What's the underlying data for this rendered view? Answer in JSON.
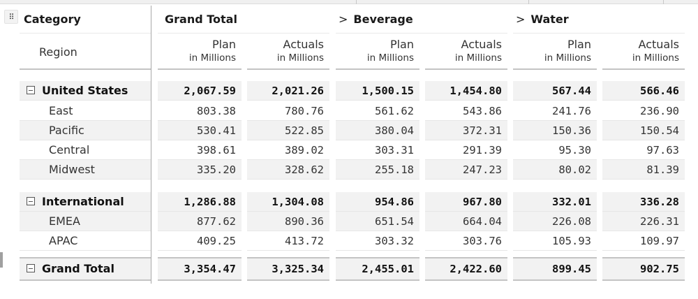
{
  "header": {
    "row_dimension": "Category",
    "sub_dimension": "Region",
    "column_groups": [
      {
        "label": "Grand Total",
        "expandable": false
      },
      {
        "label": "Beverage",
        "expandable": true
      },
      {
        "label": "Water",
        "expandable": true
      }
    ],
    "measures": [
      {
        "label": "Plan",
        "unit": "in Millions"
      },
      {
        "label": "Actuals",
        "unit": "in Millions"
      }
    ]
  },
  "rows": [
    {
      "label": "United States",
      "type": "parent",
      "values": [
        "2,067.59",
        "2,021.26",
        "1,500.15",
        "1,454.80",
        "567.44",
        "566.46"
      ]
    },
    {
      "label": "East",
      "type": "child",
      "values": [
        "803.38",
        "780.76",
        "561.62",
        "543.86",
        "241.76",
        "236.90"
      ]
    },
    {
      "label": "Pacific",
      "type": "child",
      "values": [
        "530.41",
        "522.85",
        "380.04",
        "372.31",
        "150.36",
        "150.54"
      ]
    },
    {
      "label": "Central",
      "type": "child",
      "values": [
        "398.61",
        "389.02",
        "303.31",
        "291.39",
        "95.30",
        "97.63"
      ]
    },
    {
      "label": "Midwest",
      "type": "child",
      "values": [
        "335.20",
        "328.62",
        "255.18",
        "247.23",
        "80.02",
        "81.39"
      ]
    },
    {
      "label": "International",
      "type": "parent",
      "values": [
        "1,286.88",
        "1,304.08",
        "954.86",
        "967.80",
        "332.01",
        "336.28"
      ]
    },
    {
      "label": "EMEA",
      "type": "child",
      "values": [
        "877.62",
        "890.36",
        "651.54",
        "664.04",
        "226.08",
        "226.31"
      ]
    },
    {
      "label": "APAC",
      "type": "child",
      "values": [
        "409.25",
        "413.72",
        "303.32",
        "303.76",
        "105.93",
        "109.97"
      ]
    },
    {
      "label": "Grand Total",
      "type": "total",
      "values": [
        "3,354.47",
        "3,325.34",
        "2,455.01",
        "2,422.60",
        "899.45",
        "902.75"
      ]
    }
  ],
  "icons": {
    "drag_handle": "⠿",
    "expand_chevron": ">",
    "collapse_box": "minus-square"
  }
}
